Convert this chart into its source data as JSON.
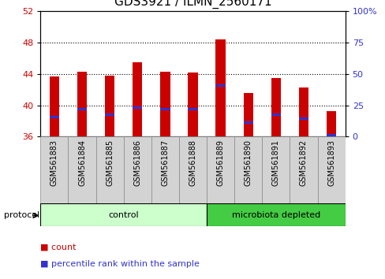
{
  "title": "GDS3921 / ILMN_2560171",
  "samples": [
    "GSM561883",
    "GSM561884",
    "GSM561885",
    "GSM561886",
    "GSM561887",
    "GSM561888",
    "GSM561889",
    "GSM561890",
    "GSM561891",
    "GSM561892",
    "GSM561893"
  ],
  "count_values": [
    43.7,
    44.3,
    43.8,
    45.5,
    44.3,
    44.2,
    48.4,
    41.6,
    43.5,
    42.3,
    39.3
  ],
  "percentile_values": [
    38.5,
    39.5,
    38.8,
    39.7,
    39.5,
    39.5,
    42.5,
    37.8,
    38.8,
    38.3,
    36.2
  ],
  "ymin": 36,
  "ymax": 52,
  "yticks_left": [
    36,
    40,
    44,
    48,
    52
  ],
  "right_yticks_pct": [
    0,
    25,
    50,
    75,
    100
  ],
  "bar_color": "#cc0000",
  "percentile_color": "#3333cc",
  "bar_width": 0.35,
  "groups": [
    {
      "label": "control",
      "indices": [
        0,
        1,
        2,
        3,
        4,
        5
      ],
      "color": "#ccffcc"
    },
    {
      "label": "microbiota depleted",
      "indices": [
        6,
        7,
        8,
        9,
        10
      ],
      "color": "#44cc44"
    }
  ],
  "protocol_label": "protocol",
  "legend_count_label": "count",
  "legend_percentile_label": "percentile rank within the sample",
  "tick_label_color_left": "#cc0000",
  "tick_label_color_right": "#3333cc",
  "title_fontsize": 11,
  "axis_fontsize": 8,
  "sample_fontsize": 7
}
